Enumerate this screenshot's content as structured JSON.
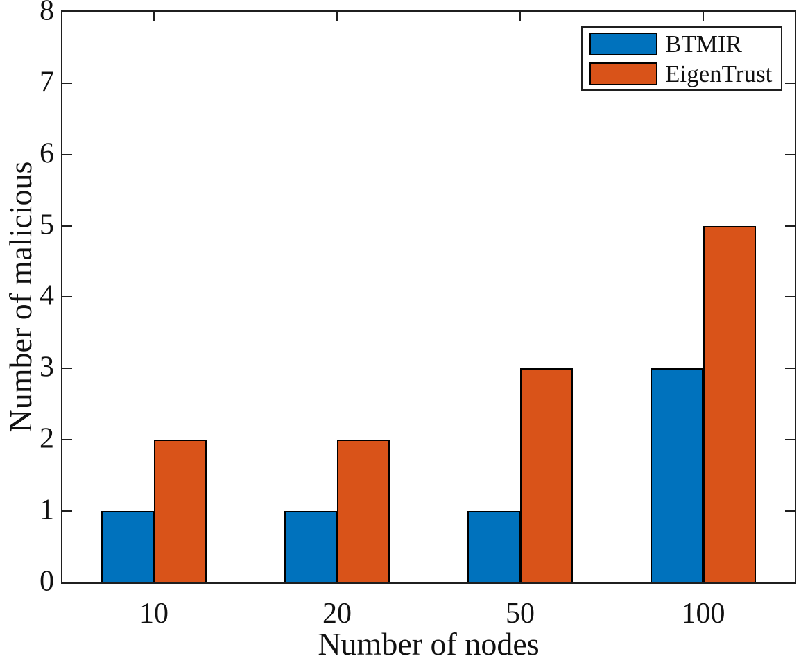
{
  "chart_data": {
    "type": "bar",
    "title": "",
    "categories": [
      "10",
      "20",
      "50",
      "100"
    ],
    "series": [
      {
        "name": "BTMIR",
        "color": "#0072BD",
        "values": [
          1,
          1,
          1,
          3
        ]
      },
      {
        "name": "EigenTrust",
        "color": "#D95319",
        "values": [
          2,
          2,
          3,
          5
        ]
      }
    ],
    "xlabel": "Number of nodes",
    "ylabel": "Number of malicious",
    "ylim": [
      0,
      8
    ],
    "yticks": [
      0,
      1,
      2,
      3,
      4,
      5,
      6,
      7,
      8
    ],
    "grid": false,
    "legend": {
      "position": "top-right",
      "entries": [
        "BTMIR",
        "EigenTrust"
      ]
    },
    "bar_edge_color": "#000000",
    "axis_color": "#1f1f1f",
    "background_color": "#ffffff"
  }
}
